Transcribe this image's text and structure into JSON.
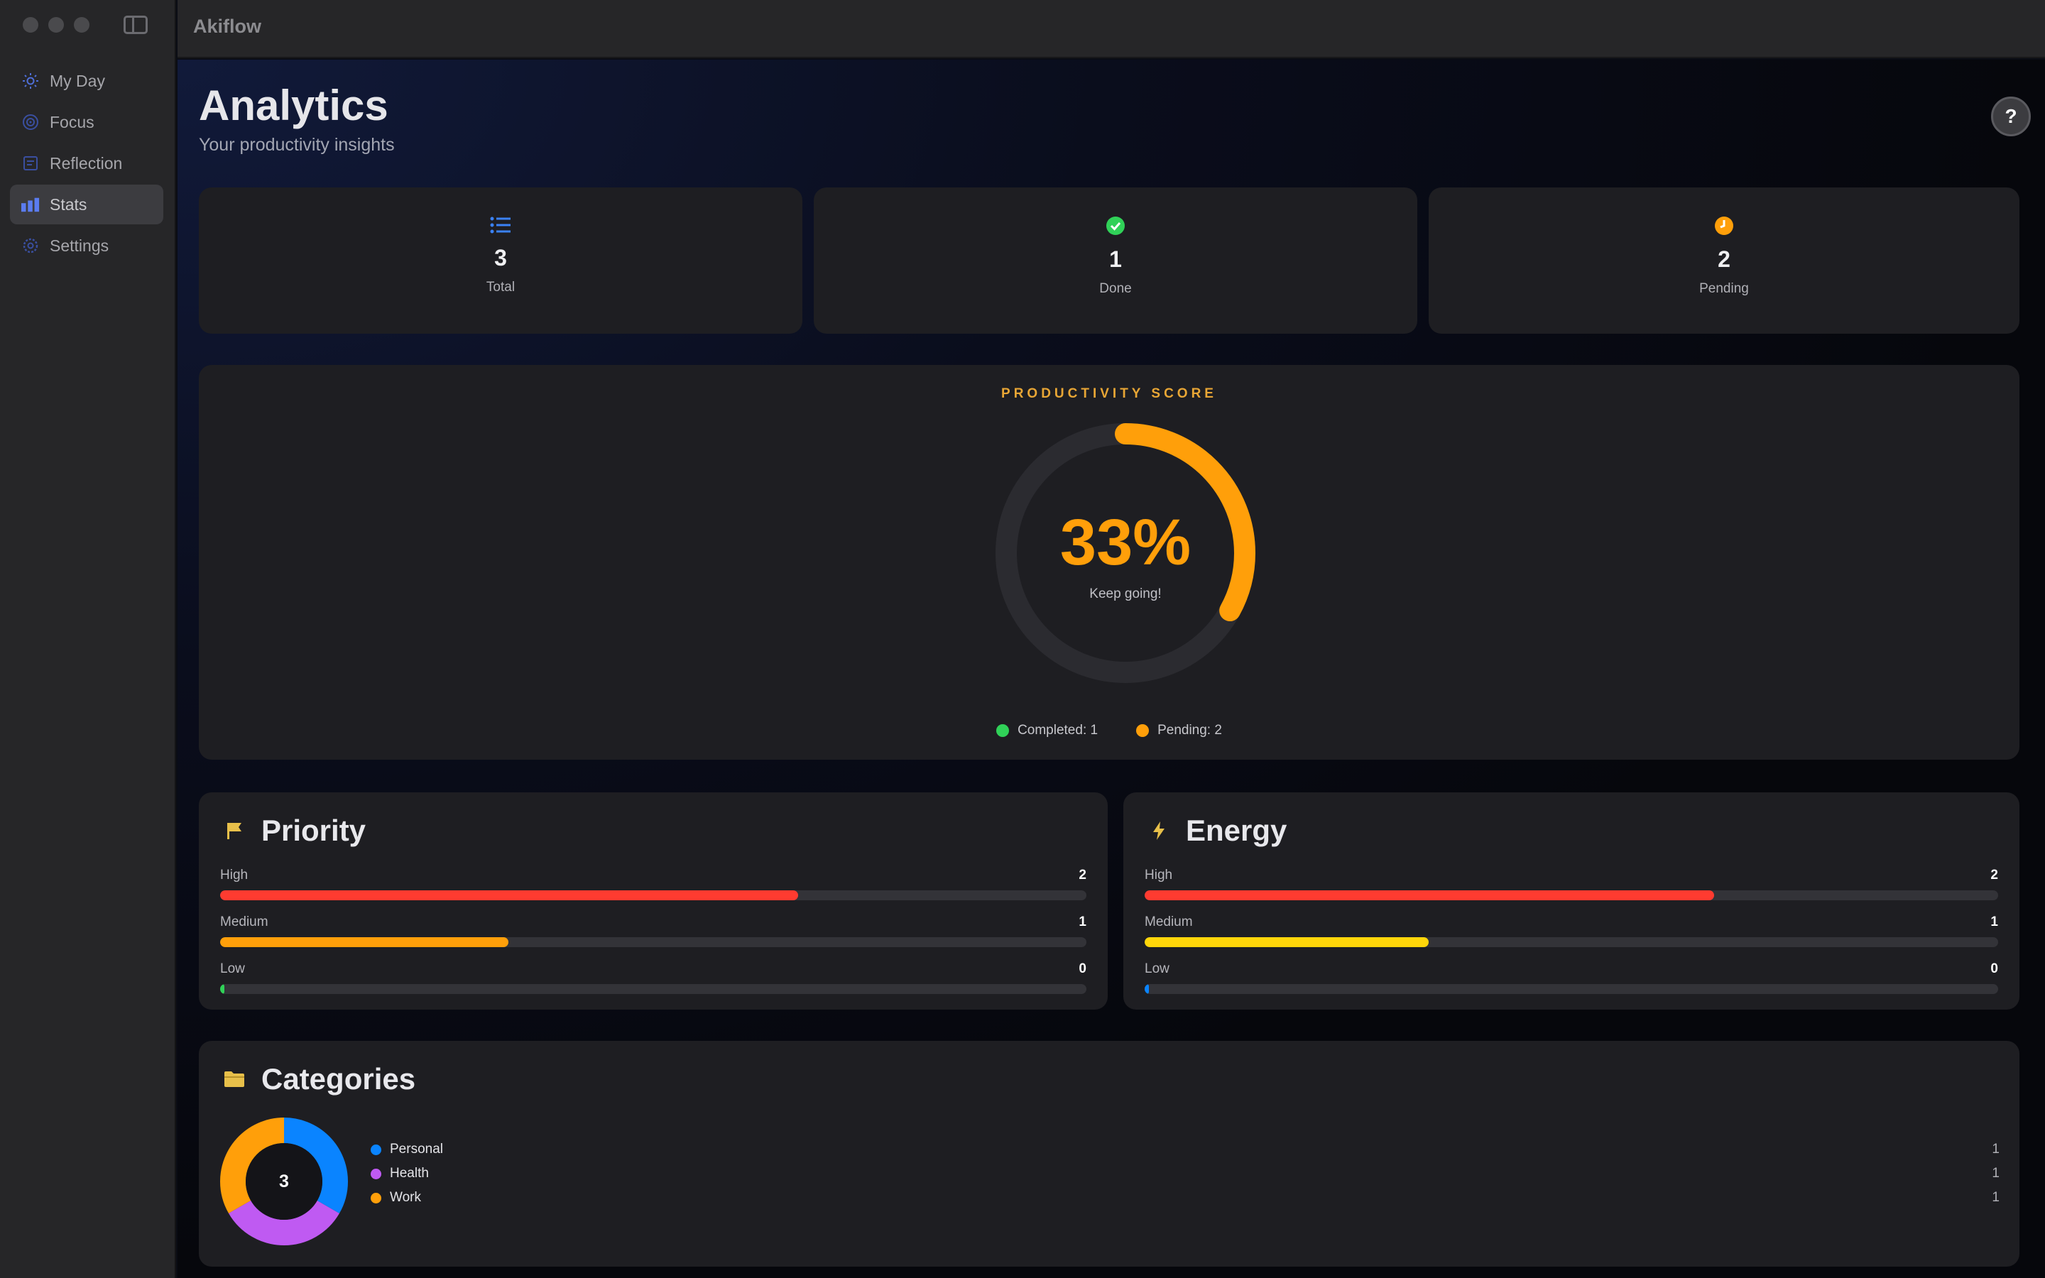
{
  "app": {
    "title": "Akiflow"
  },
  "sidebar": {
    "items": [
      {
        "label": "My Day",
        "icon": "sun-icon"
      },
      {
        "label": "Focus",
        "icon": "target-icon"
      },
      {
        "label": "Reflection",
        "icon": "journal-icon"
      },
      {
        "label": "Stats",
        "icon": "bar-chart-icon",
        "active": true
      },
      {
        "label": "Settings",
        "icon": "gear-icon"
      }
    ]
  },
  "header": {
    "title": "Analytics",
    "subtitle": "Your productivity insights",
    "help_label": "?"
  },
  "stats": [
    {
      "value": "3",
      "label": "Total",
      "icon": "list-icon",
      "color": "#3b82f6"
    },
    {
      "value": "1",
      "label": "Done",
      "icon": "check-circle-icon",
      "color": "#30d158"
    },
    {
      "value": "2",
      "label": "Pending",
      "icon": "clock-icon",
      "color": "#ff9f0a"
    }
  ],
  "score": {
    "title": "PRODUCTIVITY SCORE",
    "value": "33%",
    "fraction": 0.33,
    "message": "Keep going!",
    "legend_completed": "Completed: 1",
    "legend_pending": "Pending: 2",
    "color": "#ff9f0a"
  },
  "priority": {
    "title": "Priority",
    "icon": "flag-icon",
    "rows": [
      {
        "label": "High",
        "count": "2",
        "fraction": 0.667,
        "color": "#ff3b30"
      },
      {
        "label": "Medium",
        "count": "1",
        "fraction": 0.333,
        "color": "#ff9f0a"
      },
      {
        "label": "Low",
        "count": "0",
        "fraction": 0.0,
        "color": "#30d158"
      }
    ]
  },
  "energy": {
    "title": "Energy",
    "icon": "bolt-icon",
    "rows": [
      {
        "label": "High",
        "count": "2",
        "fraction": 0.667,
        "color": "#ff3b30"
      },
      {
        "label": "Medium",
        "count": "1",
        "fraction": 0.333,
        "color": "#ffd60a"
      },
      {
        "label": "Low",
        "count": "0",
        "fraction": 0.0,
        "color": "#0a84ff"
      }
    ]
  },
  "categories": {
    "title": "Categories",
    "icon": "folder-icon",
    "total": "3",
    "items": [
      {
        "label": "Personal",
        "count": "1",
        "value": 1,
        "color": "#0a84ff"
      },
      {
        "label": "Health",
        "count": "1",
        "value": 1,
        "color": "#bf5af2"
      },
      {
        "label": "Work",
        "count": "1",
        "value": 1,
        "color": "#ff9f0a"
      }
    ]
  }
}
